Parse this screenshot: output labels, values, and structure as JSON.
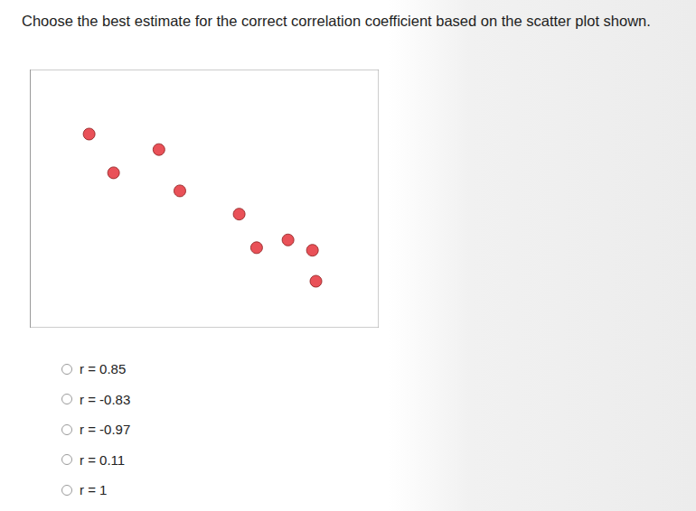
{
  "question": "Choose the best estimate for the correct correlation coefficient based on the scatter plot shown.",
  "chart_data": {
    "type": "scatter",
    "x": [
      17,
      24,
      37,
      43,
      60,
      65,
      74,
      81,
      82
    ],
    "values": [
      75,
      60,
      69,
      53,
      44,
      31,
      34,
      30,
      18
    ],
    "xlim": [
      0,
      100
    ],
    "ylim": [
      0,
      100
    ],
    "color": "#e3262e",
    "marker": "circle",
    "tick_labels": false,
    "grid": false
  },
  "options": [
    "r = 0.85",
    "r = -0.83",
    "r = -0.97",
    "r = 0.11",
    "r = 1"
  ]
}
